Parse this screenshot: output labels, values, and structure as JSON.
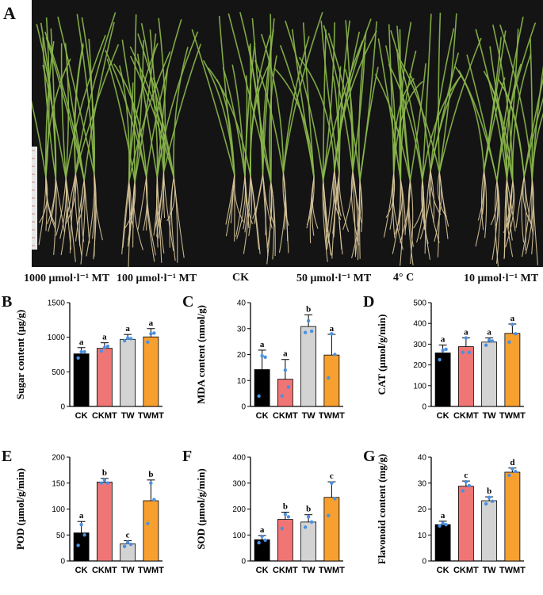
{
  "photo": {
    "panel_letter": "A",
    "labels": [
      "1000 μmol·l⁻¹ MT",
      "100 μmol·l⁻¹ MT",
      "CK",
      "50 μmol·l⁻¹ MT",
      "4° C",
      "10 μmol·l⁻¹ MT"
    ],
    "colors": {
      "background": "#141414",
      "leaf": "#8bb84a",
      "root": "#d9c79a"
    }
  },
  "colors": {
    "CK": "#000000",
    "CKMT": "#f07575",
    "TW": "#d3d3d3",
    "TWMT": "#f7a030",
    "points": "#4a90e2"
  },
  "chart_data": [
    {
      "id": "B",
      "type": "bar",
      "categories": [
        "CK",
        "CKMT",
        "TW",
        "TWMT"
      ],
      "ylabel": "Sugar content (μg/g)",
      "ylim": [
        0,
        1500
      ],
      "yticks": [
        0,
        500,
        1000,
        1500
      ],
      "values": [
        760,
        840,
        970,
        1005
      ],
      "errors": [
        90,
        80,
        70,
        120
      ],
      "letters": [
        "a",
        "a",
        "a",
        "a"
      ],
      "points": [
        [
          700,
          790,
          790
        ],
        [
          800,
          870,
          850
        ],
        [
          950,
          980,
          990
        ],
        [
          930,
          1060,
          1050
        ]
      ]
    },
    {
      "id": "C",
      "type": "bar",
      "categories": [
        "CK",
        "CKMT",
        "TW",
        "TWMT"
      ],
      "ylabel": "MDA content (nmol/g)",
      "ylim": [
        0,
        40
      ],
      "yticks": [
        0,
        10,
        20,
        30,
        40
      ],
      "values": [
        14.2,
        10.5,
        30.8,
        19.8
      ],
      "errors": [
        7.5,
        7.6,
        4.5,
        8.0
      ],
      "letters": [
        "a",
        "a",
        "b",
        "a"
      ],
      "points": [
        [
          4,
          19,
          19.5
        ],
        [
          4,
          7.5,
          14
        ],
        [
          28.5,
          29,
          33
        ],
        [
          11,
          20,
          28
        ]
      ]
    },
    {
      "id": "D",
      "type": "bar",
      "categories": [
        "CK",
        "CKMT",
        "TW",
        "TWMT"
      ],
      "ylabel": "CAT (μmol/g/min)",
      "ylim": [
        0,
        500
      ],
      "yticks": [
        0,
        100,
        200,
        300,
        400,
        500
      ],
      "values": [
        258,
        288,
        310,
        352
      ],
      "errors": [
        38,
        42,
        20,
        45
      ],
      "letters": [
        "a",
        "a",
        "a",
        "a"
      ],
      "points": [
        [
          225,
          275,
          270
        ],
        [
          260,
          260,
          330
        ],
        [
          295,
          315,
          320
        ],
        [
          310,
          350,
          395
        ]
      ]
    },
    {
      "id": "E",
      "type": "bar",
      "categories": [
        "CK",
        "CKMT",
        "TW",
        "TWMT"
      ],
      "ylabel": "POD (μmol/g/min)",
      "ylim": [
        0,
        200
      ],
      "yticks": [
        0,
        50,
        100,
        150,
        200
      ],
      "values": [
        54,
        152,
        33,
        116
      ],
      "errors": [
        22,
        7,
        6,
        40
      ],
      "letters": [
        "a",
        "b",
        "c",
        "b"
      ],
      "points": [
        [
          30,
          50,
          70
        ],
        [
          150,
          150,
          156
        ],
        [
          28,
          32,
          36
        ],
        [
          72,
          118,
          150
        ]
      ]
    },
    {
      "id": "F",
      "type": "bar",
      "categories": [
        "CK",
        "CKMT",
        "TW",
        "TWMT"
      ],
      "ylabel": "SOD (μmol/g/min)",
      "ylim": [
        0,
        400
      ],
      "yticks": [
        0,
        100,
        200,
        300,
        400
      ],
      "values": [
        82,
        160,
        150,
        245
      ],
      "errors": [
        16,
        28,
        28,
        60
      ],
      "letters": [
        "a",
        "b",
        "b",
        "c"
      ],
      "points": [
        [
          70,
          80,
          95
        ],
        [
          125,
          170,
          180
        ],
        [
          130,
          150,
          170
        ],
        [
          175,
          240,
          300
        ]
      ]
    },
    {
      "id": "G",
      "type": "bar",
      "categories": [
        "CK",
        "CKMT",
        "TW",
        "TWMT"
      ],
      "ylabel": "Flavonoid content (mg/g)",
      "ylim": [
        0,
        40
      ],
      "yticks": [
        0,
        10,
        20,
        30,
        40
      ],
      "values": [
        14,
        28.8,
        23.2,
        34.2
      ],
      "errors": [
        1.3,
        2.0,
        1.5,
        1.6
      ],
      "letters": [
        "a",
        "c",
        "b",
        "d"
      ],
      "points": [
        [
          13.5,
          14,
          14.5
        ],
        [
          27,
          29,
          30.5
        ],
        [
          22,
          23,
          24.5
        ],
        [
          33,
          34.5,
          35.5
        ]
      ]
    }
  ]
}
